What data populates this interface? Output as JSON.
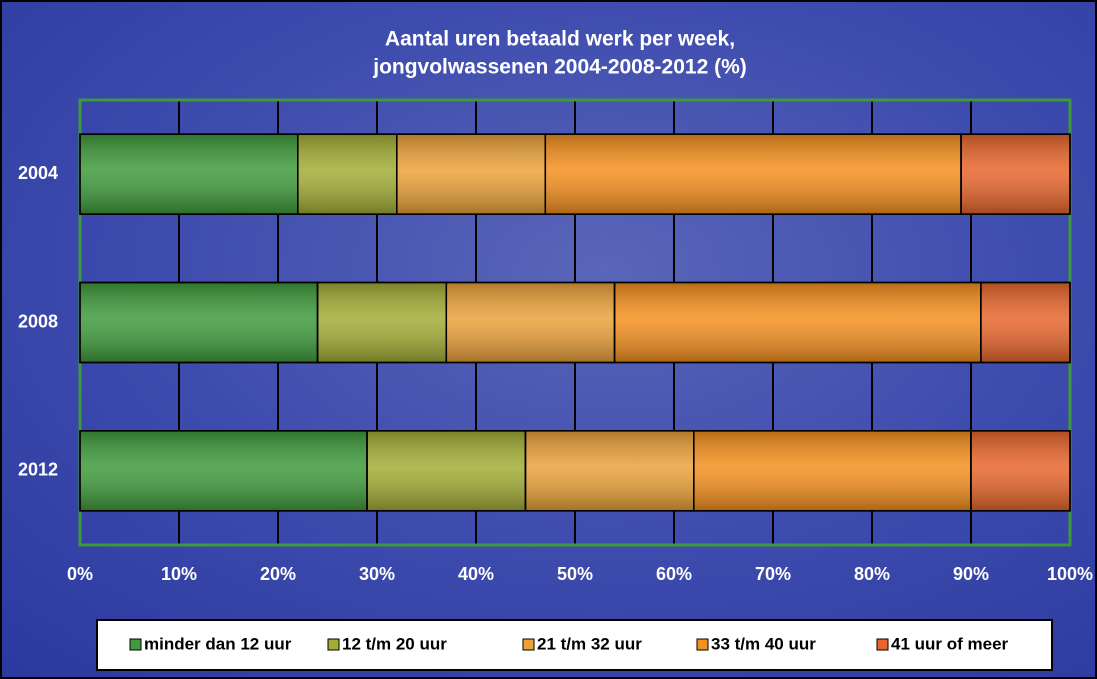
{
  "chart_data": {
    "type": "stacked_barh",
    "title": [
      "Aantal uren betaald werk per week,",
      "jongvolwassenen  2004-2008-2012  (%)"
    ],
    "categories": [
      "2004",
      "2008",
      "2012"
    ],
    "series": [
      {
        "name": "minder dan 12 uur",
        "color": "#3f9b3c",
        "values": [
          22,
          24,
          29
        ]
      },
      {
        "name": "12 t/m 20 uur",
        "color": "#a3ad35",
        "values": [
          10,
          13,
          16
        ]
      },
      {
        "name": "21 t/m 32 uur",
        "color": "#eba23a",
        "values": [
          15,
          17,
          17
        ]
      },
      {
        "name": "33 t/m 40 uur",
        "color": "#f5901f",
        "values": [
          42,
          37,
          28
        ]
      },
      {
        "name": "41 uur of meer",
        "color": "#e8662c",
        "values": [
          11,
          9,
          10
        ]
      }
    ],
    "xlim": [
      0,
      100
    ],
    "xticks": [
      {
        "value": 0,
        "label": "0%"
      },
      {
        "value": 10,
        "label": "10%"
      },
      {
        "value": 20,
        "label": "20%"
      },
      {
        "value": 30,
        "label": "30%"
      },
      {
        "value": 40,
        "label": "40%"
      },
      {
        "value": 50,
        "label": "50%"
      },
      {
        "value": 60,
        "label": "60%"
      },
      {
        "value": 70,
        "label": "70%"
      },
      {
        "value": 80,
        "label": "80%"
      },
      {
        "value": 90,
        "label": "90%"
      },
      {
        "value": 100,
        "label": "100%"
      }
    ],
    "grid": true,
    "legend": "bottom"
  }
}
